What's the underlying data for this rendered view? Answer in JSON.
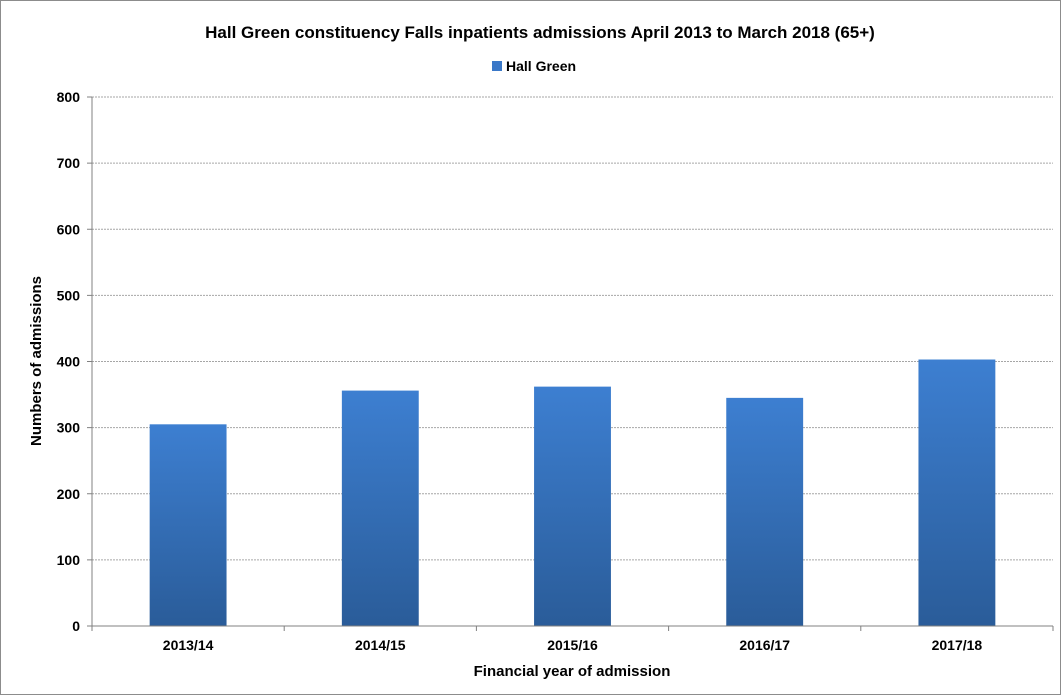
{
  "chart_data": {
    "type": "bar",
    "title": "Hall Green constituency Falls inpatients admissions April 2013 to March 2018 (65+)",
    "xlabel": "Financial year of admission",
    "ylabel": "Numbers of admissions",
    "categories": [
      "2013/14",
      "2014/15",
      "2015/16",
      "2016/17",
      "2017/18"
    ],
    "series": [
      {
        "name": "Hall Green",
        "values": [
          305,
          356,
          362,
          345,
          403
        ]
      }
    ],
    "ylim": [
      0,
      800
    ],
    "yticks": [
      0,
      100,
      200,
      300,
      400,
      500,
      600,
      700,
      800
    ],
    "grid": true,
    "legend_position": "top",
    "colors": {
      "bar_top": "#3d7fd1",
      "bar_bottom": "#2a5c99",
      "legend_marker": "#3a78c8",
      "grid": "#a6a6a6"
    }
  }
}
